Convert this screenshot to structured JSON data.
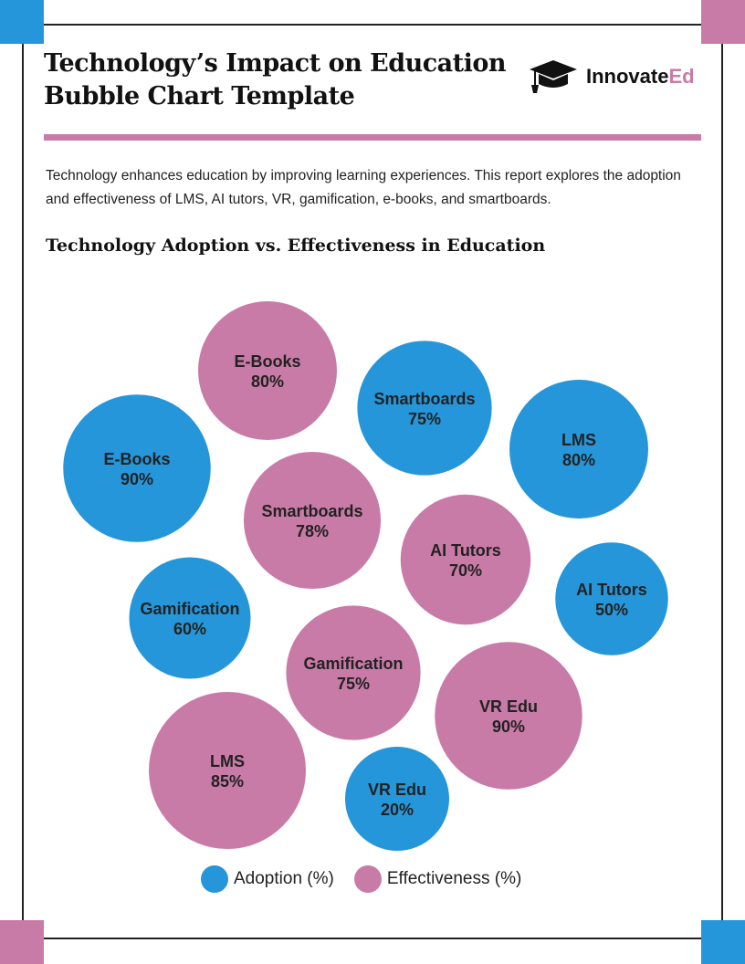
{
  "header": {
    "title_line1": "Technology’s Impact on Education",
    "title_line2": "Bubble Chart Template",
    "logo_text_main": "Innovate",
    "logo_text_accent": "Ed",
    "logo_icon": "graduation-cap-icon"
  },
  "intro": "Technology enhances education by improving learning experiences. This report explores the adoption and effectiveness of LMS, AI tutors, VR, gamification, e-books, and smartboards.",
  "colors": {
    "adoption": "#2596DA",
    "effectiveness": "#C97BA7",
    "text": "#111111"
  },
  "chart_data": {
    "type": "bubble",
    "title": "Technology Adoption vs. Effectiveness in Education",
    "legend_position": "bottom",
    "series": [
      {
        "name": "Adoption (%)",
        "points": [
          {
            "label": "E-Books",
            "value": 90
          },
          {
            "label": "Smartboards",
            "value": 75
          },
          {
            "label": "LMS",
            "value": 80
          },
          {
            "label": "Gamification",
            "value": 60
          },
          {
            "label": "AI Tutors",
            "value": 50
          },
          {
            "label": "VR Edu",
            "value": 20
          }
        ]
      },
      {
        "name": "Effectiveness (%)",
        "points": [
          {
            "label": "E-Books",
            "value": 80
          },
          {
            "label": "Smartboards",
            "value": 78
          },
          {
            "label": "AI Tutors",
            "value": 70
          },
          {
            "label": "Gamification",
            "value": 75
          },
          {
            "label": "VR Edu",
            "value": 90
          },
          {
            "label": "LMS",
            "value": 85
          }
        ]
      }
    ]
  }
}
